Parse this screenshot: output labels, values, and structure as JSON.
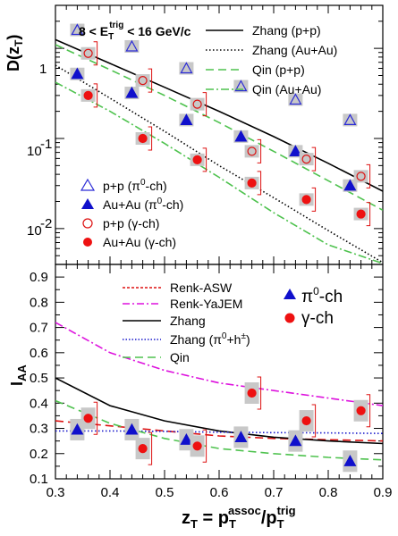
{
  "chart_data": [
    {
      "type": "scatter",
      "ylabel": "D(z_T)",
      "ylabel_main": "D(z",
      "ylabel_sub": "T",
      "ylabel_close": ")",
      "annotation": "8 < E_T^trig < 16 GeV/c",
      "annotation_parts": {
        "a": "8 < E",
        "sub": "T",
        "sup": "trig",
        "b": " < 16 GeV/c"
      },
      "yscale": "log",
      "xlim": [
        0.3,
        0.9
      ],
      "ylim": [
        0.004,
        3
      ],
      "y_ticklabels": [
        "1",
        "10",
        "-1",
        "10",
        "-2"
      ],
      "y_ticks": [
        {
          "label": "1",
          "value": 1
        },
        {
          "label": "10⁻¹",
          "value": 0.1
        },
        {
          "label": "10⁻²",
          "value": 0.01
        }
      ],
      "series": [
        {
          "name": "p+p (π⁰-ch)",
          "marker": "open-triangle",
          "color": "#2b2bd6",
          "x": [
            0.34,
            0.44,
            0.54,
            0.64,
            0.74,
            0.84
          ],
          "y": [
            1.6,
            1.05,
            0.6,
            0.38,
            0.27,
            0.16
          ]
        },
        {
          "name": "Au+Au (π⁰-ch)",
          "marker": "filled-triangle",
          "color": "#1010cc",
          "x": [
            0.34,
            0.44,
            0.54,
            0.64,
            0.74,
            0.84
          ],
          "y": [
            0.52,
            0.32,
            0.16,
            0.105,
            0.072,
            0.03
          ]
        },
        {
          "name": "p+p (γ-ch)",
          "marker": "open-circle",
          "color": "#dd1111",
          "x": [
            0.36,
            0.46,
            0.56,
            0.66,
            0.76,
            0.86
          ],
          "y": [
            0.88,
            0.44,
            0.24,
            0.072,
            0.059,
            0.038
          ]
        },
        {
          "name": "Au+Au (γ-ch)",
          "marker": "filled-circle",
          "color": "#ee1111",
          "x": [
            0.36,
            0.46,
            0.56,
            0.66,
            0.76,
            0.86
          ],
          "y": [
            0.3,
            0.1,
            0.058,
            0.032,
            0.021,
            0.0145
          ]
        }
      ],
      "curves": [
        {
          "name": "Zhang (p+p)",
          "style": "solid",
          "color": "#000000",
          "x": [
            0.3,
            0.4,
            0.5,
            0.6,
            0.7,
            0.8,
            0.9
          ],
          "y": [
            1.25,
            0.68,
            0.37,
            0.2,
            0.105,
            0.053,
            0.026
          ]
        },
        {
          "name": "Zhang (Au+Au)",
          "style": "dotted",
          "color": "#000000",
          "x": [
            0.3,
            0.4,
            0.5,
            0.6,
            0.7,
            0.8,
            0.9
          ],
          "y": [
            0.65,
            0.28,
            0.12,
            0.05,
            0.022,
            0.0095,
            0.0042
          ]
        },
        {
          "name": "Qin (p+p)",
          "style": "dashed",
          "color": "#4ec24e",
          "x": [
            0.3,
            0.4,
            0.5,
            0.6,
            0.7,
            0.8,
            0.9
          ],
          "y": [
            1.1,
            0.58,
            0.3,
            0.15,
            0.072,
            0.034,
            0.016
          ]
        },
        {
          "name": "Qin (Au+Au)",
          "style": "dashdot",
          "color": "#4ec24e",
          "x": [
            0.3,
            0.4,
            0.5,
            0.6,
            0.7,
            0.8,
            0.9
          ],
          "y": [
            0.42,
            0.2,
            0.088,
            0.037,
            0.015,
            0.0066,
            0.0041
          ]
        }
      ]
    },
    {
      "type": "scatter",
      "ylabel": "I_AA",
      "ylabel_main": "I",
      "ylabel_sub": "AA",
      "xlabel": "z_T = p_T^assoc / p_T^trig",
      "xlabel_parts": {
        "z": "z",
        "zsub": "T",
        "eq": " = p",
        "psub1": "T",
        "psup1": "assoc",
        "slash": "/p",
        "psub2": "T",
        "psup2": "trig"
      },
      "xlim": [
        0.3,
        0.9
      ],
      "ylim": [
        0.1,
        0.95
      ],
      "x_ticks": [
        "0.3",
        "0.4",
        "0.5",
        "0.6",
        "0.7",
        "0.8",
        "0.9"
      ],
      "y_ticks": [
        "0.1",
        "0.2",
        "0.3",
        "0.4",
        "0.5",
        "0.6",
        "0.7",
        "0.8",
        "0.9"
      ],
      "series": [
        {
          "name": "π⁰-ch",
          "marker": "filled-triangle",
          "color": "#1010cc",
          "x": [
            0.34,
            0.44,
            0.54,
            0.64,
            0.74,
            0.84
          ],
          "y": [
            0.295,
            0.295,
            0.255,
            0.265,
            0.25,
            0.17
          ]
        },
        {
          "name": "γ-ch",
          "marker": "filled-circle",
          "color": "#ee1111",
          "x": [
            0.36,
            0.46,
            0.56,
            0.66,
            0.76,
            0.86
          ],
          "y": [
            0.34,
            0.22,
            0.23,
            0.44,
            0.33,
            0.37
          ]
        }
      ],
      "curves": [
        {
          "name": "Renk-ASW",
          "style": "dashed",
          "color": "#dd1111",
          "x": [
            0.3,
            0.4,
            0.5,
            0.6,
            0.7,
            0.8,
            0.9
          ],
          "y": [
            0.33,
            0.31,
            0.29,
            0.27,
            0.26,
            0.255,
            0.25
          ]
        },
        {
          "name": "Renk-YaJEM",
          "style": "dashdot",
          "color": "#dd11dd",
          "x": [
            0.3,
            0.4,
            0.5,
            0.6,
            0.7,
            0.8,
            0.9
          ],
          "y": [
            0.72,
            0.6,
            0.53,
            0.48,
            0.45,
            0.42,
            0.39
          ]
        },
        {
          "name": "Zhang",
          "style": "solid",
          "color": "#000000",
          "x": [
            0.3,
            0.4,
            0.5,
            0.6,
            0.7,
            0.8,
            0.9
          ],
          "y": [
            0.5,
            0.39,
            0.33,
            0.29,
            0.265,
            0.25,
            0.24
          ]
        },
        {
          "name": "Zhang (π⁰+h±)",
          "style": "dotted",
          "color": "#1a1acc",
          "x": [
            0.3,
            0.4,
            0.5,
            0.6,
            0.7,
            0.8,
            0.9
          ],
          "y": [
            0.29,
            0.29,
            0.288,
            0.285,
            0.283,
            0.282,
            0.28
          ]
        },
        {
          "name": "Qin",
          "style": "dashed",
          "color": "#4ec24e",
          "x": [
            0.3,
            0.4,
            0.5,
            0.6,
            0.7,
            0.8,
            0.9
          ],
          "y": [
            0.41,
            0.32,
            0.26,
            0.22,
            0.2,
            0.185,
            0.175
          ]
        }
      ]
    }
  ],
  "legend_top": {
    "lines": [
      "Zhang (p+p)",
      "Zhang (Au+Au)",
      "Qin (p+p)",
      "Qin (Au+Au)"
    ],
    "points_prefix": [
      "p+p (π",
      "Au+Au (π",
      "p+p (γ-ch)",
      "Au+Au (γ-ch)"
    ],
    "points_suffix": [
      "-ch)",
      "-ch)"
    ],
    "pi_sup": "0"
  },
  "legend_bottom": {
    "lines": [
      "Renk-ASW",
      "Renk-YaJEM",
      "Zhang",
      "Zhang (π",
      "Qin"
    ],
    "zhang_pi_tail": "+h",
    "pi_sup": "0",
    "h_sup": "±",
    "zhang_close": ")",
    "big_pi": "π",
    "big_pi_tail": "-ch",
    "big_gamma": "γ-ch"
  }
}
